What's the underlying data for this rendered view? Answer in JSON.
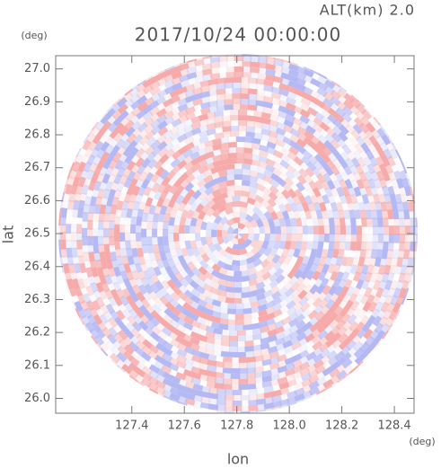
{
  "chart_data": {
    "type": "ppi",
    "title": "2017/10/24 00:00:00",
    "subtitle": "ALT(km) 2.0",
    "x_label": "lon",
    "y_label": "lat",
    "x_unit": "(deg)",
    "y_unit": "(deg)",
    "xlim": [
      127.11,
      128.475
    ],
    "ylim": [
      25.955,
      27.04
    ],
    "xticks": [
      127.4,
      127.6,
      127.8,
      {
        "value": 128,
        "label": "128.0"
      },
      128.2,
      128.4
    ],
    "yticks": [
      {
        "value": 26,
        "label": "26.0"
      },
      26.1,
      26.2,
      26.3,
      26.4,
      26.5,
      26.6,
      26.7,
      26.8,
      26.9,
      {
        "value": 27,
        "label": "27.0"
      }
    ],
    "colors": [
      "#f6aaaa",
      "#b5b9f3"
    ]
  }
}
